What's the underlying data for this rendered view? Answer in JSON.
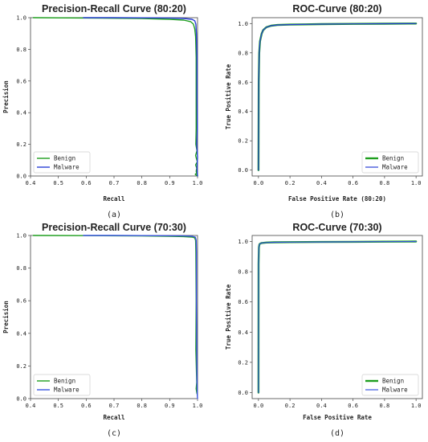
{
  "chart_data": [
    {
      "type": "line",
      "title": "Precision-Recall Curve (80:20)",
      "xlabel": "Recall",
      "ylabel": "Precision",
      "caption": "(a)",
      "xlim": [
        0.4,
        1.0
      ],
      "ylim": [
        0.0,
        1.0
      ],
      "xticks": [
        "0.4",
        "0.5",
        "0.6",
        "0.7",
        "0.8",
        "0.9",
        "1.0"
      ],
      "yticks": [
        "0.0",
        "0.2",
        "0.4",
        "0.6",
        "0.8",
        "1.0"
      ],
      "legend_position": "bottom-left",
      "grid": false,
      "series": [
        {
          "name": "Benign",
          "color": "#1e9e1e",
          "linewidth": 1.4,
          "x": [
            0.41,
            0.6,
            0.8,
            0.9,
            0.95,
            0.975,
            0.985,
            0.99,
            0.993,
            0.995,
            0.995,
            0.995,
            0.994,
            0.998,
            0.993,
            0.999,
            0.993,
            0.997,
            0.995,
            0.997,
            0.992,
            1.0,
            0.997
          ],
          "y": [
            1.0,
            0.998,
            0.995,
            0.99,
            0.985,
            0.975,
            0.96,
            0.93,
            0.88,
            0.75,
            0.5,
            0.3,
            0.2,
            0.16,
            0.13,
            0.09,
            0.07,
            0.05,
            0.03,
            0.02,
            0.01,
            0.0,
            0.03
          ]
        },
        {
          "name": "Malware",
          "color": "#2a3fd6",
          "linewidth": 1.4,
          "x": [
            0.59,
            0.7,
            0.8,
            0.9,
            0.95,
            0.98,
            0.99,
            0.994,
            0.996,
            0.998,
            0.998,
            0.999,
            0.997,
            1.0,
            0.998,
            1.0
          ],
          "y": [
            1.0,
            1.0,
            0.999,
            0.998,
            0.995,
            0.99,
            0.98,
            0.96,
            0.9,
            0.75,
            0.5,
            0.3,
            0.2,
            0.12,
            0.05,
            0.0
          ]
        }
      ]
    },
    {
      "type": "line",
      "title": "ROC-Curve (80:20)",
      "xlabel": "False Positive Rate (80:20)",
      "ylabel": "True Positive Rate",
      "caption": "(b)",
      "xlim": [
        -0.04,
        1.04
      ],
      "ylim": [
        -0.04,
        1.04
      ],
      "xticks": [
        "0.0",
        "0.2",
        "0.4",
        "0.6",
        "0.8",
        "1.0"
      ],
      "yticks": [
        "0.0",
        "0.2",
        "0.4",
        "0.6",
        "0.8",
        "1.0"
      ],
      "legend_position": "bottom-right",
      "grid": false,
      "series": [
        {
          "name": "Benign",
          "color": "#1e9e1e",
          "linewidth": 2.4,
          "x": [
            0.0,
            0.002,
            0.005,
            0.01,
            0.02,
            0.03,
            0.05,
            0.08,
            0.12,
            0.2,
            0.4,
            0.6,
            0.8,
            1.0
          ],
          "y": [
            0.0,
            0.6,
            0.8,
            0.88,
            0.93,
            0.955,
            0.975,
            0.985,
            0.99,
            0.993,
            0.996,
            0.998,
            0.999,
            1.0
          ]
        },
        {
          "name": "Malware",
          "color": "#2a3fd6",
          "linewidth": 1.2,
          "x": [
            0.0,
            0.002,
            0.005,
            0.01,
            0.02,
            0.03,
            0.05,
            0.08,
            0.12,
            0.2,
            0.4,
            0.6,
            0.8,
            1.0
          ],
          "y": [
            0.0,
            0.6,
            0.8,
            0.88,
            0.93,
            0.955,
            0.975,
            0.985,
            0.99,
            0.993,
            0.996,
            0.998,
            0.999,
            1.0
          ]
        }
      ]
    },
    {
      "type": "line",
      "title": "Precision-Recall Curve (70:30)",
      "xlabel": "Recall",
      "ylabel": "Precision",
      "caption": "(c)",
      "xlim": [
        0.4,
        1.0
      ],
      "ylim": [
        0.0,
        1.0
      ],
      "xticks": [
        "0.4",
        "0.5",
        "0.6",
        "0.7",
        "0.8",
        "0.9",
        "1.0"
      ],
      "yticks": [
        "0.0",
        "0.2",
        "0.4",
        "0.6",
        "0.8",
        "1.0"
      ],
      "legend_position": "bottom-left",
      "grid": false,
      "series": [
        {
          "name": "Benign",
          "color": "#1e9e1e",
          "linewidth": 1.4,
          "x": [
            0.41,
            0.6,
            0.8,
            0.9,
            0.95,
            0.98,
            0.99,
            0.993,
            0.994,
            0.995,
            0.994,
            0.997,
            0.995,
            0.998,
            0.996
          ],
          "y": [
            1.0,
            0.999,
            0.997,
            0.995,
            0.993,
            0.99,
            0.985,
            0.97,
            0.9,
            0.6,
            0.3,
            0.1,
            0.06,
            0.03,
            0.08
          ]
        },
        {
          "name": "Malware",
          "color": "#3a55e0",
          "linewidth": 1.4,
          "x": [
            0.59,
            0.7,
            0.8,
            0.9,
            0.95,
            0.98,
            0.992,
            0.995,
            0.996,
            0.996,
            0.997,
            0.998,
            0.999,
            1.0
          ],
          "y": [
            1.0,
            1.0,
            0.999,
            0.998,
            0.997,
            0.995,
            0.99,
            0.97,
            0.9,
            0.6,
            0.3,
            0.1,
            0.02,
            0.0
          ]
        }
      ]
    },
    {
      "type": "line",
      "title": "ROC-Curve (70:30)",
      "xlabel": "False Positive Rate",
      "ylabel": "True Positive Rate",
      "caption": "(d)",
      "xlim": [
        -0.04,
        1.04
      ],
      "ylim": [
        -0.04,
        1.04
      ],
      "xticks": [
        "0.0",
        "0.2",
        "0.4",
        "0.6",
        "0.8",
        "1.0"
      ],
      "yticks": [
        "0.0",
        "0.2",
        "0.4",
        "0.6",
        "0.8",
        "1.0"
      ],
      "legend_position": "bottom-right",
      "grid": false,
      "series": [
        {
          "name": "Benign",
          "color": "#1e9e1e",
          "linewidth": 2.4,
          "x": [
            0.0,
            0.001,
            0.003,
            0.006,
            0.01,
            0.02,
            0.05,
            0.1,
            0.2,
            0.4,
            0.6,
            0.8,
            1.0
          ],
          "y": [
            0.0,
            0.85,
            0.96,
            0.98,
            0.985,
            0.99,
            0.993,
            0.995,
            0.996,
            0.997,
            0.998,
            0.999,
            1.0
          ]
        },
        {
          "name": "Malware",
          "color": "#3a55e0",
          "linewidth": 1.2,
          "x": [
            0.0,
            0.001,
            0.003,
            0.006,
            0.01,
            0.02,
            0.05,
            0.1,
            0.2,
            0.4,
            0.6,
            0.8,
            1.0
          ],
          "y": [
            0.0,
            0.85,
            0.96,
            0.98,
            0.985,
            0.99,
            0.993,
            0.995,
            0.996,
            0.997,
            0.998,
            0.999,
            1.0
          ]
        }
      ]
    }
  ]
}
